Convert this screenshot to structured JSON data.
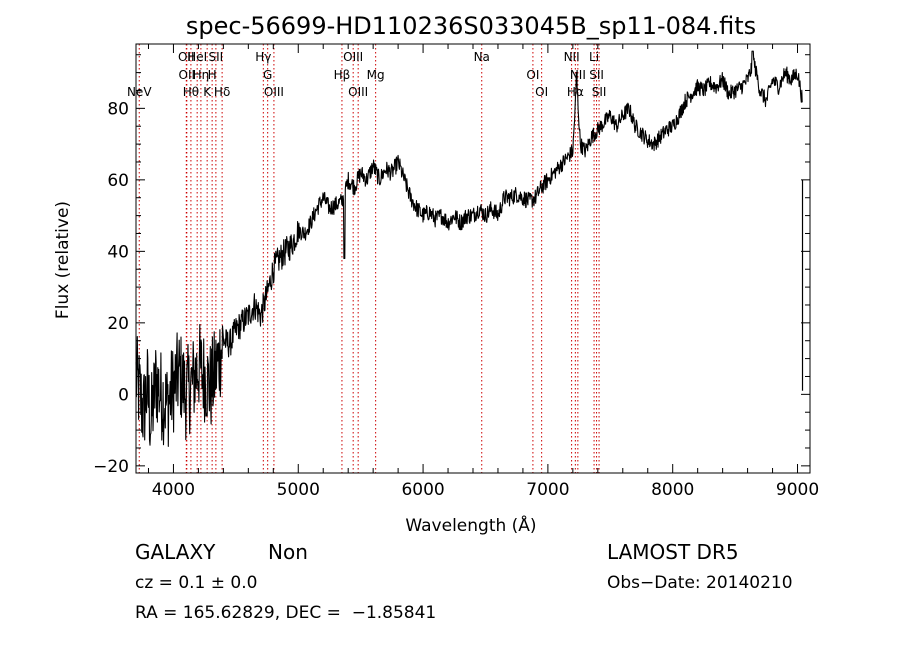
{
  "chart_data": {
    "type": "line",
    "title": "spec-56699-HD110236S033045B_sp11-084.fits",
    "xlabel": "Wavelength (Å)",
    "ylabel": "Flux (relative)",
    "xlim": [
      3700,
      9100
    ],
    "ylim": [
      -22,
      98
    ],
    "xticks": [
      4000,
      5000,
      6000,
      7000,
      8000,
      9000
    ],
    "yticks": [
      -20,
      0,
      20,
      40,
      60,
      80
    ],
    "grid": false,
    "line_color": "#000000",
    "marker_color": "#cc0000",
    "series": [
      {
        "x": [
          3700,
          3730,
          3760,
          3790,
          3820,
          3860,
          3900,
          3950,
          4000,
          4050,
          4100,
          4150,
          4200,
          4250,
          4300,
          4350,
          4400,
          4450,
          4500,
          4550,
          4600,
          4650,
          4700,
          4750,
          4800,
          4850,
          4900,
          4950,
          5000,
          5050,
          5100,
          5150,
          5200,
          5250,
          5300,
          5350,
          5400,
          5450,
          5500,
          5550,
          5600,
          5650,
          5700,
          5750,
          5800,
          5850,
          5900,
          5950,
          6000,
          6050,
          6100,
          6150,
          6200,
          6250,
          6300,
          6350,
          6400,
          6450,
          6500,
          6550,
          6600,
          6650,
          6700,
          6750,
          6800,
          6850,
          6900,
          6950,
          7000,
          7050,
          7100,
          7150,
          7200,
          7230,
          7260,
          7300,
          7350,
          7400,
          7450,
          7500,
          7550,
          7600,
          7650,
          7700,
          7750,
          7800,
          7850,
          7900,
          7950,
          8000,
          8050,
          8100,
          8150,
          8200,
          8250,
          8300,
          8350,
          8400,
          8450,
          8500,
          8550,
          8600,
          8650,
          8700,
          8750,
          8800,
          8850,
          8900,
          8950,
          9000,
          9050
        ],
        "y": [
          5,
          0,
          -5,
          2,
          -8,
          4,
          0,
          -3,
          2,
          6,
          0,
          3,
          8,
          5,
          2,
          8,
          15,
          14,
          18,
          20,
          22,
          25,
          22,
          28,
          35,
          38,
          40,
          42,
          46,
          45,
          48,
          52,
          55,
          52,
          53,
          54,
          60,
          58,
          62,
          60,
          64,
          60,
          63,
          62,
          65,
          60,
          55,
          52,
          50,
          51,
          49,
          50,
          48,
          50,
          48,
          50,
          50,
          52,
          50,
          52,
          50,
          55,
          55,
          56,
          55,
          54,
          55,
          58,
          60,
          62,
          64,
          66,
          68,
          88,
          70,
          68,
          72,
          74,
          76,
          78,
          75,
          78,
          80,
          75,
          73,
          71,
          70,
          72,
          74,
          75,
          78,
          82,
          84,
          86,
          85,
          87,
          86,
          88,
          84,
          85,
          86,
          88,
          93,
          85,
          82,
          88,
          86,
          90,
          88,
          90,
          80
        ]
      }
    ],
    "lines": [
      {
        "label": "NeV",
        "x": 3726
      },
      {
        "label": "OII",
        "x": 4103
      },
      {
        "label": "OII",
        "x": 4107
      },
      {
        "label": "Hθ",
        "x": 4140
      },
      {
        "label": "HeI",
        "x": 4190
      },
      {
        "label": "Hη",
        "x": 4220
      },
      {
        "label": "K",
        "x": 4270
      },
      {
        "label": "H",
        "x": 4310
      },
      {
        "label": "SII",
        "x": 4340
      },
      {
        "label": "Hδ",
        "x": 4390
      },
      {
        "label": "Hγ",
        "x": 4720
      },
      {
        "label": "G",
        "x": 4755
      },
      {
        "label": "OIII",
        "x": 4805
      },
      {
        "label": "Hβ",
        "x": 5350
      },
      {
        "label": "OIII",
        "x": 5440
      },
      {
        "label": "OIII",
        "x": 5480
      },
      {
        "label": "Mg",
        "x": 5620
      },
      {
        "label": "Na",
        "x": 6470
      },
      {
        "label": "OI",
        "x": 6880
      },
      {
        "label": "OI",
        "x": 6950
      },
      {
        "label": "NII",
        "x": 7190
      },
      {
        "label": "Hα",
        "x": 7220
      },
      {
        "label": "NII",
        "x": 7240
      },
      {
        "label": "Li",
        "x": 7370
      },
      {
        "label": "SII",
        "x": 7390
      },
      {
        "label": "SII",
        "x": 7410
      }
    ]
  },
  "info": {
    "object_class": "GALAXY",
    "subclass": "Non",
    "cz": "cz = 0.1 ± 0.0",
    "coords": "RA = 165.62829, DEC =  −1.85841",
    "survey": "LAMOST DR5",
    "obs_date": "Obs−Date: 20140210"
  }
}
